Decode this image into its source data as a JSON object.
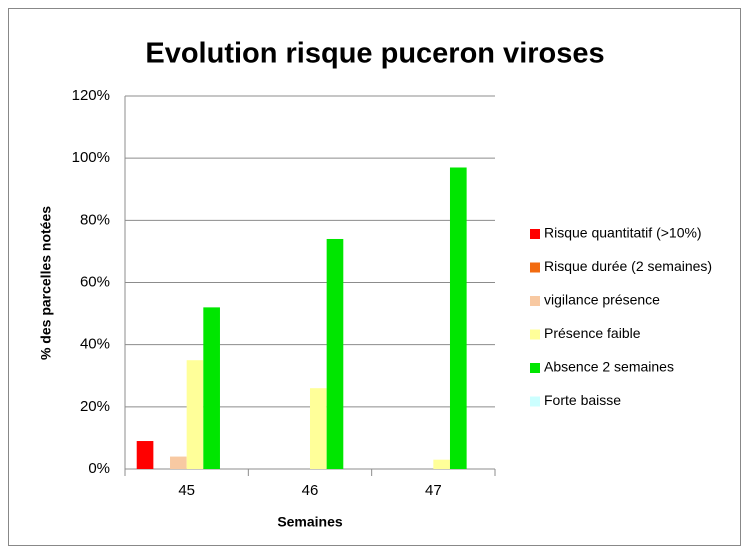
{
  "chart_data": {
    "type": "bar",
    "title": "Evolution risque puceron viroses",
    "x_label": "Semaines",
    "y_label": "% des parcelles notées",
    "categories": [
      "45",
      "46",
      "47"
    ],
    "series": [
      {
        "name": "Risque quantitatif (>10%)",
        "color": "#ff0000",
        "values": [
          9,
          0,
          0
        ]
      },
      {
        "name": "Risque durée (2 semaines)",
        "color": "#f26b10",
        "values": [
          0,
          0,
          0
        ]
      },
      {
        "name": "vigilance présence",
        "color": "#f8c9a2",
        "values": [
          4,
          0,
          0
        ]
      },
      {
        "name": "Présence faible",
        "color": "#ffff99",
        "values": [
          35,
          26,
          3
        ]
      },
      {
        "name": "Absence 2 semaines",
        "color": "#00e600",
        "values": [
          52,
          74,
          97
        ]
      },
      {
        "name": "Forte baisse",
        "color": "#ccffff",
        "values": [
          0,
          0,
          0
        ]
      }
    ],
    "ylim": [
      0,
      120
    ],
    "yticks": [
      {
        "value": 0,
        "label": "0%"
      },
      {
        "value": 20,
        "label": "20%"
      },
      {
        "value": 40,
        "label": "40%"
      },
      {
        "value": 60,
        "label": "60%"
      },
      {
        "value": 80,
        "label": "80%"
      },
      {
        "value": 100,
        "label": "100%"
      },
      {
        "value": 120,
        "label": "120%"
      }
    ],
    "grid": true,
    "legend": "right"
  }
}
